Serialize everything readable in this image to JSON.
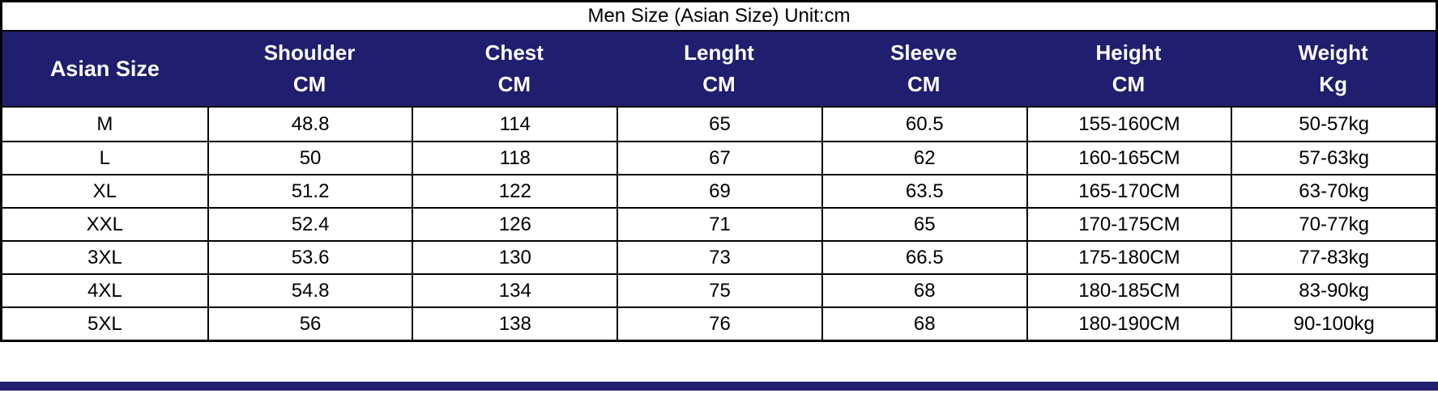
{
  "title": "Men Size (Asian Size) Unit:cm",
  "table": {
    "corner_header": "Asian Size",
    "columns": [
      {
        "label": "Shoulder",
        "unit": "CM"
      },
      {
        "label": "Chest",
        "unit": "CM"
      },
      {
        "label": "Lenght",
        "unit": "CM"
      },
      {
        "label": "Sleeve",
        "unit": "CM"
      },
      {
        "label": "Height",
        "unit": "CM"
      },
      {
        "label": "Weight",
        "unit": "Kg"
      }
    ],
    "rows": [
      {
        "size": "M",
        "values": [
          "48.8",
          "114",
          "65",
          "60.5",
          "155-160CM",
          "50-57kg"
        ]
      },
      {
        "size": "L",
        "values": [
          "50",
          "118",
          "67",
          "62",
          "160-165CM",
          "57-63kg"
        ]
      },
      {
        "size": "XL",
        "values": [
          "51.2",
          "122",
          "69",
          "63.5",
          "165-170CM",
          "63-70kg"
        ]
      },
      {
        "size": "XXL",
        "values": [
          "52.4",
          "126",
          "71",
          "65",
          "170-175CM",
          "70-77kg"
        ]
      },
      {
        "size": "3XL",
        "values": [
          "53.6",
          "130",
          "73",
          "66.5",
          "175-180CM",
          "77-83kg"
        ]
      },
      {
        "size": "4XL",
        "values": [
          "54.8",
          "134",
          "75",
          "68",
          "180-185CM",
          "83-90kg"
        ]
      },
      {
        "size": "5XL",
        "values": [
          "56",
          "138",
          "76",
          "68",
          "180-190CM",
          "90-100kg"
        ]
      }
    ]
  },
  "chart_data": {
    "type": "table",
    "title": "Men Size (Asian Size) Unit:cm",
    "columns": [
      "Asian Size",
      "Shoulder CM",
      "Chest CM",
      "Lenght CM",
      "Sleeve CM",
      "Height CM",
      "Weight Kg"
    ],
    "rows": [
      [
        "M",
        "48.8",
        "114",
        "65",
        "60.5",
        "155-160CM",
        "50-57kg"
      ],
      [
        "L",
        "50",
        "118",
        "67",
        "62",
        "160-165CM",
        "57-63kg"
      ],
      [
        "XL",
        "51.2",
        "122",
        "69",
        "63.5",
        "165-170CM",
        "63-70kg"
      ],
      [
        "XXL",
        "52.4",
        "126",
        "71",
        "65",
        "170-175CM",
        "70-77kg"
      ],
      [
        "3XL",
        "53.6",
        "130",
        "73",
        "66.5",
        "175-180CM",
        "77-83kg"
      ],
      [
        "4XL",
        "54.8",
        "134",
        "75",
        "68",
        "180-185CM",
        "83-90kg"
      ],
      [
        "5XL",
        "56",
        "138",
        "76",
        "68",
        "180-190CM",
        "90-100kg"
      ]
    ]
  },
  "colors": {
    "header_bg": "#201e6e",
    "header_text": "#ffffff",
    "body_text": "#000000",
    "border": "#000000"
  }
}
